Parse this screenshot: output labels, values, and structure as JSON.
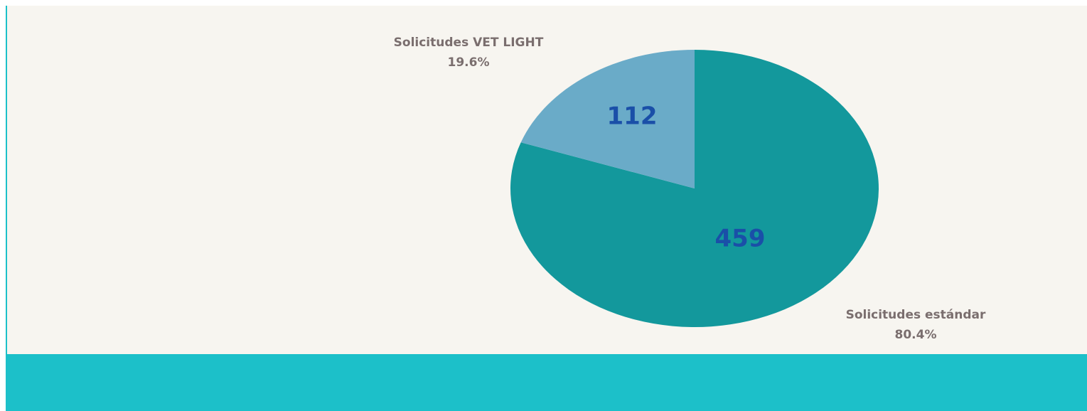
{
  "chart_data": {
    "type": "pie",
    "categories": [
      "Solicitudes estándar",
      "Solicitudes VET LIGHT"
    ],
    "values": [
      459,
      112
    ],
    "percentages": [
      80.4,
      19.6
    ],
    "percentage_labels": [
      "80.4%",
      "19.6%"
    ],
    "colors": [
      "#13989c",
      "#6aabc8"
    ]
  }
}
